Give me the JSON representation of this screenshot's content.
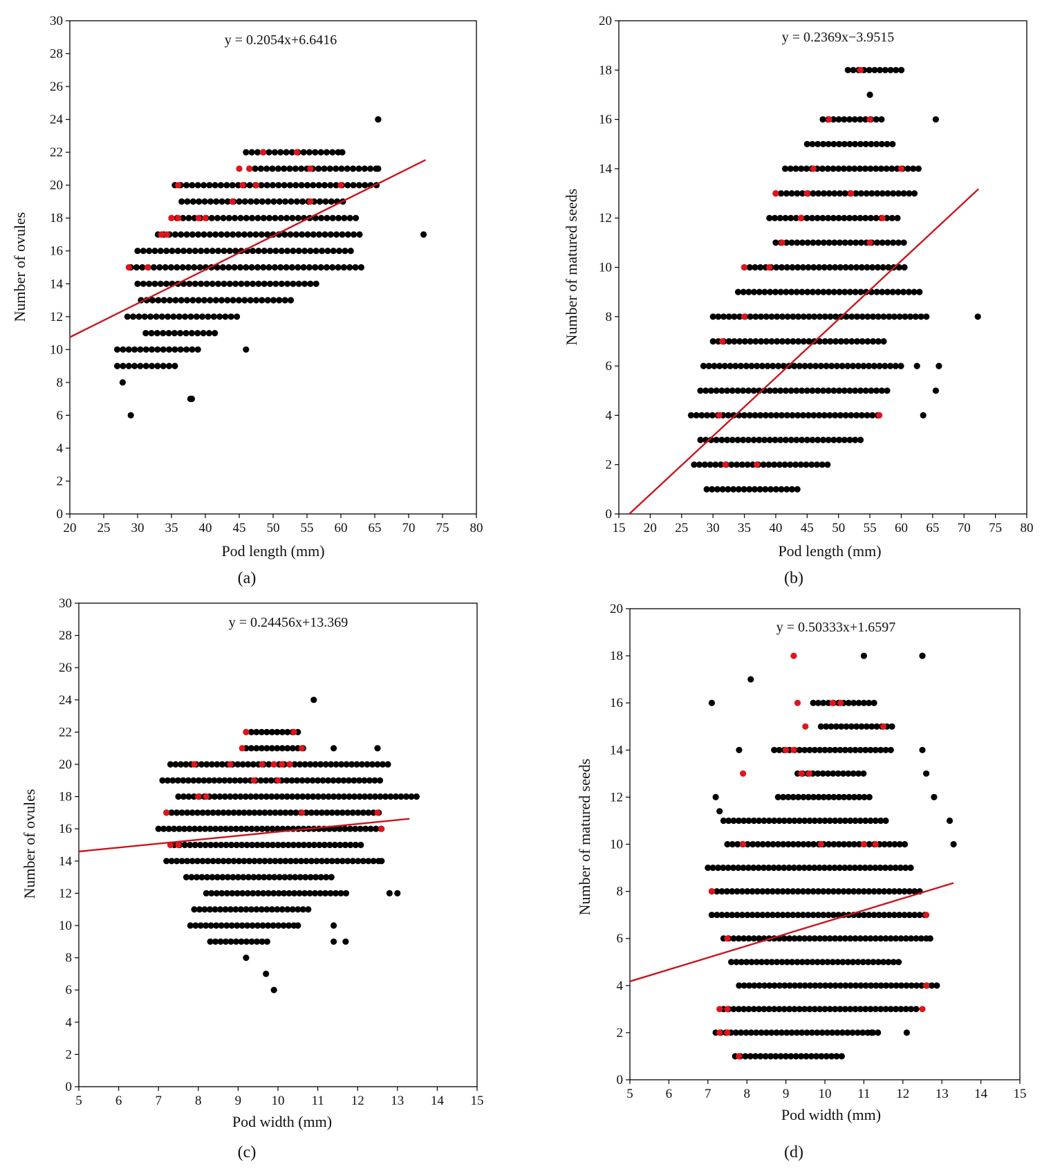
{
  "chart_data": [
    {
      "type": "scatter",
      "panel_label": "(a)",
      "equation": "y = 0.2054x+6.6416",
      "xlabel": "Pod length (mm)",
      "ylabel": "Number of ovules",
      "xlim": [
        20,
        80
      ],
      "ylim": [
        0,
        30
      ],
      "xticks": [
        20,
        25,
        30,
        35,
        40,
        45,
        50,
        55,
        60,
        65,
        70,
        75,
        80
      ],
      "yticks": [
        0,
        2,
        4,
        6,
        8,
        10,
        12,
        14,
        16,
        18,
        20,
        22,
        24,
        26,
        28,
        30
      ],
      "fit": {
        "slope": 0.2054,
        "intercept": 6.6416,
        "x_range": [
          20,
          72.5
        ]
      },
      "rows": [
        [
          6,
          29,
          29
        ],
        [
          7,
          37.8,
          37.8
        ],
        [
          8,
          27.8,
          27.8
        ],
        [
          9,
          27,
          36
        ],
        [
          10,
          27,
          39
        ],
        [
          11,
          31.2,
          41.5
        ],
        [
          12,
          28.5,
          45
        ],
        [
          13,
          30.5,
          52.8
        ],
        [
          14,
          30,
          56.5
        ],
        [
          15,
          29,
          62.8
        ],
        [
          16,
          30,
          61.5
        ],
        [
          17,
          33,
          63.5
        ],
        [
          18,
          35,
          62.5
        ],
        [
          19,
          36.5,
          60.5
        ],
        [
          20,
          35.5,
          66
        ],
        [
          21,
          46.5,
          65.5
        ],
        [
          22,
          46,
          60
        ],
        [
          24,
          65.5,
          65.5
        ]
      ],
      "outliers": [
        [
          38,
          7
        ],
        [
          46,
          10
        ],
        [
          60.2,
          22
        ],
        [
          63,
          15
        ],
        [
          72.2,
          17
        ],
        [
          65.5,
          21
        ],
        [
          65.5,
          24
        ]
      ],
      "red_points": [
        [
          28.7,
          15
        ],
        [
          31.5,
          15
        ],
        [
          33.5,
          17
        ],
        [
          34.3,
          17
        ],
        [
          35,
          18
        ],
        [
          36,
          18
        ],
        [
          39,
          18
        ],
        [
          40,
          18
        ],
        [
          44,
          19
        ],
        [
          36,
          20
        ],
        [
          45,
          21
        ],
        [
          46.5,
          21
        ],
        [
          45.5,
          20
        ],
        [
          47.5,
          20
        ],
        [
          48.5,
          22
        ],
        [
          53.5,
          22
        ],
        [
          55.5,
          21
        ],
        [
          60,
          20
        ],
        [
          55.5,
          19
        ]
      ]
    },
    {
      "type": "scatter",
      "panel_label": "(b)",
      "equation": "y = 0.2369x−3.9515",
      "xlabel": "Pod length (mm)",
      "ylabel": "Number of matured seeds",
      "xlim": [
        15,
        80
      ],
      "ylim": [
        0,
        20
      ],
      "xticks": [
        15,
        20,
        25,
        30,
        35,
        40,
        45,
        50,
        55,
        60,
        65,
        70,
        75,
        80
      ],
      "yticks": [
        0,
        2,
        4,
        6,
        8,
        10,
        12,
        14,
        16,
        18,
        20
      ],
      "fit": {
        "slope": 0.2369,
        "intercept": -3.9515,
        "x_range": [
          16.7,
          72.3
        ]
      },
      "rows": [
        [
          1,
          29,
          44
        ],
        [
          2,
          27,
          49
        ],
        [
          3,
          28,
          54
        ],
        [
          4,
          26.5,
          57
        ],
        [
          5,
          28,
          58
        ],
        [
          6,
          28.5,
          60
        ],
        [
          7,
          30,
          58
        ],
        [
          8,
          30,
          64
        ],
        [
          9,
          34,
          63
        ],
        [
          10,
          35,
          61
        ],
        [
          11,
          40,
          61
        ],
        [
          12,
          39,
          60
        ],
        [
          13,
          40,
          62.5
        ],
        [
          14,
          41.5,
          63.5
        ],
        [
          15,
          45,
          59
        ],
        [
          16,
          47.5,
          57
        ],
        [
          17,
          55,
          55
        ],
        [
          18,
          51.5,
          60
        ]
      ],
      "outliers": [
        [
          65.5,
          16
        ],
        [
          72.2,
          8
        ],
        [
          66,
          6
        ],
        [
          65.5,
          5
        ],
        [
          63.5,
          4
        ],
        [
          62.5,
          6
        ],
        [
          60,
          18
        ]
      ],
      "red_points": [
        [
          32,
          2
        ],
        [
          37,
          2
        ],
        [
          31,
          4
        ],
        [
          31.5,
          7
        ],
        [
          35,
          8
        ],
        [
          35,
          10
        ],
        [
          39,
          10
        ],
        [
          40,
          13
        ],
        [
          41,
          11
        ],
        [
          44,
          12
        ],
        [
          45,
          13
        ],
        [
          46,
          14
        ],
        [
          48.5,
          16
        ],
        [
          53.5,
          18
        ],
        [
          55,
          16
        ],
        [
          55,
          11
        ],
        [
          56.5,
          4
        ],
        [
          57,
          12
        ],
        [
          60,
          14
        ],
        [
          52,
          13
        ]
      ]
    },
    {
      "type": "scatter",
      "panel_label": "(c)",
      "equation": "y = 0.24456x+13.369",
      "xlabel": "Pod width (mm)",
      "ylabel": "Number of ovules",
      "xlim": [
        5,
        15
      ],
      "ylim": [
        0,
        30
      ],
      "xticks": [
        5,
        6,
        7,
        8,
        9,
        10,
        11,
        12,
        13,
        14,
        15
      ],
      "yticks": [
        0,
        2,
        4,
        6,
        8,
        10,
        12,
        14,
        16,
        18,
        20,
        22,
        24,
        26,
        28,
        30
      ],
      "fit": {
        "slope": 0.24456,
        "intercept": 13.369,
        "x_range": [
          5,
          13.3
        ]
      },
      "rows": [
        [
          6,
          9.9,
          9.9
        ],
        [
          7,
          9.7,
          9.7
        ],
        [
          8,
          9.2,
          9.2
        ],
        [
          9,
          8.3,
          9.8
        ],
        [
          10,
          7.8,
          10.5
        ],
        [
          11,
          7.9,
          10.8
        ],
        [
          12,
          8.2,
          11.8
        ],
        [
          13,
          7.7,
          11.4
        ],
        [
          14,
          7.2,
          12.6
        ],
        [
          15,
          7.4,
          12.2
        ],
        [
          16,
          7.0,
          12.6
        ],
        [
          17,
          7.2,
          12.6
        ],
        [
          18,
          7.5,
          13.5
        ],
        [
          19,
          7.1,
          12.6
        ],
        [
          20,
          7.3,
          12.8
        ],
        [
          21,
          9.2,
          10.7
        ],
        [
          22,
          9.2,
          10.5
        ],
        [
          24,
          10.9,
          10.9
        ]
      ],
      "outliers": [
        [
          11.4,
          9
        ],
        [
          11.7,
          9
        ],
        [
          11.4,
          10
        ],
        [
          12.6,
          14
        ],
        [
          13.0,
          12
        ],
        [
          12.8,
          12
        ],
        [
          12.5,
          21
        ],
        [
          11.4,
          21
        ],
        [
          10.5,
          10
        ]
      ],
      "red_points": [
        [
          7.3,
          15
        ],
        [
          7.5,
          15
        ],
        [
          7.2,
          17
        ],
        [
          8.0,
          18
        ],
        [
          8.2,
          18
        ],
        [
          7.9,
          20
        ],
        [
          8.8,
          20
        ],
        [
          9.1,
          21
        ],
        [
          9.2,
          22
        ],
        [
          9.6,
          20
        ],
        [
          9.9,
          20
        ],
        [
          10.1,
          20
        ],
        [
          10.3,
          20
        ],
        [
          10.4,
          22
        ],
        [
          10.6,
          21
        ],
        [
          9.4,
          19
        ],
        [
          10.0,
          19
        ],
        [
          12.6,
          16
        ],
        [
          12.5,
          17
        ],
        [
          10.6,
          17
        ]
      ]
    },
    {
      "type": "scatter",
      "panel_label": "(d)",
      "equation": "y = 0.50333x+1.6597",
      "xlabel": "Pod width (mm)",
      "ylabel": "Number of matured seeds",
      "xlim": [
        5,
        15
      ],
      "ylim": [
        0,
        20
      ],
      "xticks": [
        5,
        6,
        7,
        8,
        9,
        10,
        11,
        12,
        13,
        14,
        15
      ],
      "yticks": [
        0,
        2,
        4,
        6,
        8,
        10,
        12,
        14,
        16,
        18,
        20
      ],
      "fit": {
        "slope": 0.50333,
        "intercept": 1.6597,
        "x_range": [
          5,
          13.3
        ]
      },
      "rows": [
        [
          1,
          7.7,
          10.5
        ],
        [
          2,
          7.2,
          11.4
        ],
        [
          3,
          7.4,
          12.4
        ],
        [
          4,
          7.8,
          12.9
        ],
        [
          5,
          7.6,
          12.0
        ],
        [
          6,
          7.4,
          12.6
        ],
        [
          7,
          7.1,
          12.6
        ],
        [
          8,
          7.1,
          12.5
        ],
        [
          9,
          7.0,
          12.3
        ],
        [
          10,
          7.5,
          12.1
        ],
        [
          11,
          7.4,
          11.6
        ],
        [
          12,
          8.8,
          11.2
        ],
        [
          13,
          9.3,
          11.1
        ],
        [
          14,
          8.7,
          11.7
        ],
        [
          15,
          9.9,
          11.8
        ],
        [
          16,
          9.7,
          11.3
        ]
      ],
      "outliers": [
        [
          7.1,
          16
        ],
        [
          8.1,
          17
        ],
        [
          7.2,
          12
        ],
        [
          7.3,
          11.4
        ],
        [
          7.8,
          14
        ],
        [
          11.0,
          18
        ],
        [
          12.5,
          18
        ],
        [
          12.5,
          14
        ],
        [
          12.6,
          13
        ],
        [
          12.8,
          12
        ],
        [
          13.2,
          11
        ],
        [
          13.3,
          10
        ],
        [
          12.7,
          6
        ],
        [
          12.1,
          2
        ],
        [
          11.2,
          2
        ]
      ],
      "red_points": [
        [
          7.8,
          1
        ],
        [
          7.3,
          2
        ],
        [
          7.5,
          2
        ],
        [
          7.3,
          3
        ],
        [
          7.5,
          3
        ],
        [
          7.1,
          8
        ],
        [
          7.5,
          6
        ],
        [
          7.9,
          10
        ],
        [
          7.9,
          13
        ],
        [
          9.2,
          18
        ],
        [
          9.3,
          16
        ],
        [
          9.0,
          14
        ],
        [
          9.2,
          14
        ],
        [
          9.4,
          13
        ],
        [
          9.6,
          13
        ],
        [
          9.5,
          15
        ],
        [
          9.9,
          10
        ],
        [
          10.2,
          16
        ],
        [
          10.4,
          16
        ],
        [
          11.0,
          10
        ],
        [
          11.5,
          15
        ],
        [
          12.6,
          7
        ],
        [
          12.5,
          3
        ],
        [
          12.6,
          4
        ],
        [
          11.3,
          10
        ]
      ]
    }
  ]
}
